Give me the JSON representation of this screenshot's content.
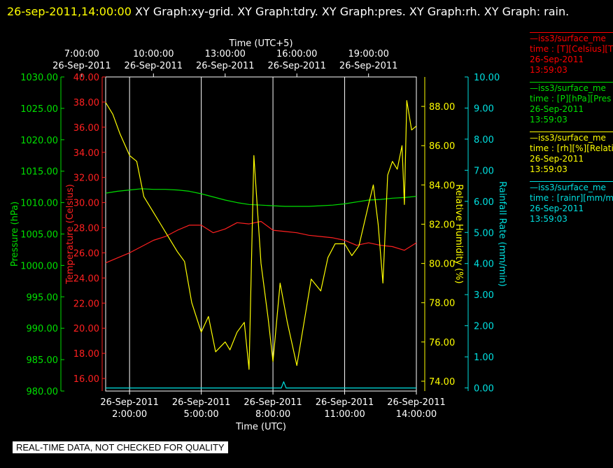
{
  "header": {
    "datetime": "26-sep-2011,14:00:00",
    "text": " XY Graph:xy-grid.  XY Graph:tdry.  XY Graph:pres.  XY Graph:rh.  XY Graph: rain."
  },
  "legend": [
    {
      "color": "#ff0000",
      "lines": [
        "—iss3/surface_me",
        "time : [T][Celsius][T",
        "26-Sep-2011",
        "13:59:03"
      ]
    },
    {
      "color": "#00e000",
      "lines": [
        "—iss3/surface_me",
        "time : [P][hPa][Pres",
        "26-Sep-2011",
        "13:59:03"
      ]
    },
    {
      "color": "#ffff00",
      "lines": [
        "—iss3/surface_me",
        "time : [rh][%][Relati",
        "26-Sep-2011",
        "13:59:03"
      ]
    },
    {
      "color": "#00e0e0",
      "lines": [
        "—iss3/surface_me",
        "time : [rainr][mm/mi",
        "26-Sep-2011",
        "13:59:03"
      ]
    }
  ],
  "banner": "REAL-TIME DATA, NOT CHECKED FOR QUALITY",
  "chart_data": {
    "type": "line",
    "grid": true,
    "x_range_utc_hours": [
      1.0,
      14.0
    ],
    "top_axis": {
      "label": "Time (UTC+5)",
      "ticks": [
        {
          "x": 5,
          "time": "7:00:00",
          "date": "26-Sep-2011"
        },
        {
          "x": 8,
          "time": "10:00:00",
          "date": "26-Sep-2011"
        },
        {
          "x": 11,
          "time": "13:00:00",
          "date": "26-Sep-2011"
        },
        {
          "x": 14,
          "time": "16:00:00",
          "date": "26-Sep-2011"
        },
        {
          "x": 17,
          "time": "19:00:00",
          "date": "26-Sep-2011"
        }
      ]
    },
    "bottom_axis": {
      "label": "Time (UTC)",
      "ticks": [
        {
          "x": 2,
          "date": "26-Sep-2011",
          "time": "2:00:00"
        },
        {
          "x": 5,
          "date": "26-Sep-2011",
          "time": "5:00:00"
        },
        {
          "x": 8,
          "date": "26-Sep-2011",
          "time": "8:00:00"
        },
        {
          "x": 11,
          "date": "26-Sep-2011",
          "time": "11:00:00"
        },
        {
          "x": 14,
          "date": "26-Sep-2011",
          "time": "14:00:00"
        }
      ]
    },
    "axes": {
      "pressure": {
        "label": "Pressure (hPa)",
        "color": "#00e000",
        "range": [
          980,
          1030
        ],
        "ticks": [
          "980.00",
          "985.00",
          "990.00",
          "995.00",
          "1000.00",
          "1005.00",
          "1010.00",
          "1015.00",
          "1020.00",
          "1025.00",
          "1030.00"
        ]
      },
      "temperature": {
        "label": "Temperature (Celsius)",
        "color": "#ff2020",
        "range": [
          15,
          40
        ],
        "ticks": [
          "16.00",
          "18.00",
          "20.00",
          "22.00",
          "24.00",
          "26.00",
          "28.00",
          "30.00",
          "32.00",
          "34.00",
          "36.00",
          "38.00",
          "40.00"
        ]
      },
      "humidity": {
        "label": "Relative Humidity (%)",
        "color": "#ffff00",
        "range": [
          73.5,
          89.5
        ],
        "ticks": [
          "74.00",
          "76.00",
          "78.00",
          "80.00",
          "82.00",
          "84.00",
          "86.00",
          "88.00"
        ]
      },
      "rain": {
        "label": "Rainfall Rate (mm/min)",
        "color": "#00e0e0",
        "range": [
          -0.1,
          10
        ],
        "ticks": [
          "0.00",
          "1.00",
          "2.00",
          "3.00",
          "4.00",
          "5.00",
          "6.00",
          "7.00",
          "8.00",
          "9.00",
          "10.00"
        ]
      }
    },
    "series": [
      {
        "axis": "temperature",
        "color": "#ff2020",
        "x": [
          1.0,
          1.5,
          2.0,
          2.5,
          3.0,
          3.5,
          4.0,
          4.5,
          5.0,
          5.5,
          6.0,
          6.5,
          7.0,
          7.5,
          8.0,
          8.5,
          9.0,
          9.5,
          10.0,
          10.5,
          11.0,
          11.5,
          12.0,
          12.5,
          13.0,
          13.5,
          14.0
        ],
        "y": [
          25.2,
          25.6,
          26.0,
          26.5,
          27.0,
          27.3,
          27.8,
          28.2,
          28.2,
          27.6,
          27.9,
          28.4,
          28.3,
          28.5,
          27.8,
          27.7,
          27.6,
          27.4,
          27.3,
          27.2,
          27.0,
          26.6,
          26.8,
          26.6,
          26.5,
          26.2,
          26.8
        ]
      },
      {
        "axis": "pressure",
        "color": "#00e000",
        "x": [
          1.0,
          1.5,
          2.0,
          2.5,
          3.0,
          3.5,
          4.0,
          4.5,
          5.0,
          5.5,
          6.0,
          6.5,
          7.0,
          7.5,
          8.0,
          8.5,
          9.0,
          9.5,
          10.0,
          10.5,
          11.0,
          11.5,
          12.0,
          12.5,
          13.0,
          13.5,
          14.0
        ],
        "y": [
          1011.5,
          1011.8,
          1012.0,
          1012.2,
          1012.1,
          1012.1,
          1012.0,
          1011.8,
          1011.4,
          1010.9,
          1010.4,
          1010.0,
          1009.7,
          1009.6,
          1009.5,
          1009.4,
          1009.4,
          1009.4,
          1009.5,
          1009.6,
          1009.8,
          1010.1,
          1010.4,
          1010.5,
          1010.7,
          1010.8,
          1011.0
        ]
      },
      {
        "axis": "humidity",
        "color": "#ffff00",
        "x": [
          1.0,
          1.3,
          1.6,
          2.0,
          2.3,
          2.6,
          3.0,
          3.3,
          3.6,
          4.0,
          4.3,
          4.6,
          5.0,
          5.3,
          5.6,
          6.0,
          6.2,
          6.5,
          6.8,
          7.0,
          7.2,
          7.5,
          7.8,
          8.0,
          8.3,
          8.6,
          9.0,
          9.3,
          9.6,
          10.0,
          10.3,
          10.6,
          11.0,
          11.3,
          11.6,
          12.0,
          12.2,
          12.4,
          12.6,
          12.8,
          13.0,
          13.2,
          13.4,
          13.5,
          13.6,
          13.8,
          14.0
        ],
        "y": [
          88.2,
          87.6,
          86.6,
          85.5,
          85.2,
          83.4,
          82.6,
          82.0,
          81.4,
          80.6,
          80.1,
          78.0,
          76.5,
          77.3,
          75.5,
          76.0,
          75.6,
          76.5,
          77.0,
          74.6,
          85.5,
          80.0,
          77.2,
          75.0,
          79.0,
          77.0,
          74.8,
          77.0,
          79.2,
          78.6,
          80.3,
          81.0,
          81.0,
          80.4,
          80.9,
          83.0,
          84.0,
          82.0,
          79.0,
          84.5,
          85.2,
          84.8,
          86.0,
          83.0,
          88.3,
          86.8,
          87.0
        ]
      },
      {
        "axis": "rain",
        "color": "#00e0e0",
        "x": [
          1.0,
          4.0,
          8.2,
          8.35,
          8.45,
          8.55,
          8.7,
          10.0,
          14.0
        ],
        "y": [
          0.0,
          0.0,
          0.0,
          0.0,
          0.2,
          0.0,
          0.0,
          0.0,
          0.0
        ]
      }
    ]
  }
}
